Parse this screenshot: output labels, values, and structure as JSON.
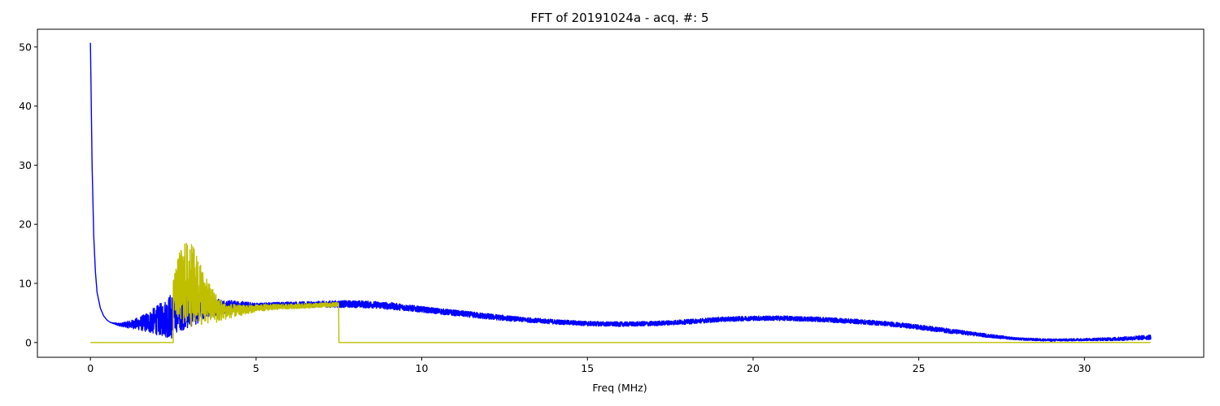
{
  "chart_data": {
    "type": "line",
    "title": "FFT of 20191024a - acq. #: 5",
    "xlabel": "Freq (MHz)",
    "ylabel": "",
    "xlim": [
      -1.6,
      33.6
    ],
    "ylim": [
      -2.5,
      53
    ],
    "xticks": [
      0,
      5,
      10,
      15,
      20,
      25,
      30
    ],
    "yticks": [
      0,
      10,
      20,
      30,
      40,
      50
    ],
    "grid": false,
    "legend": "none",
    "series": [
      {
        "color": "#0000ff",
        "style": "noisy-envelope",
        "x": [
          0,
          0.05,
          0.1,
          0.15,
          0.2,
          0.3,
          0.4,
          0.5,
          0.6,
          0.8,
          1.0,
          1.3,
          1.6,
          1.9,
          2.2,
          2.45,
          2.5,
          3.0,
          3.5,
          4.0,
          4.5,
          5.0,
          5.5,
          6.0,
          6.5,
          7.0,
          7.5,
          8.0,
          8.5,
          9.0,
          10.0,
          11.0,
          12.0,
          13.0,
          14.0,
          15.0,
          16.0,
          17.0,
          18.0,
          19.0,
          20.0,
          21.0,
          22.0,
          23.0,
          24.0,
          25.0,
          26.0,
          27.0,
          28.0,
          29.0,
          30.0,
          31.0,
          32.0
        ],
        "y": [
          50.7,
          30,
          18,
          12,
          8.5,
          5.8,
          4.5,
          3.8,
          3.4,
          3.1,
          3.0,
          3.1,
          3.3,
          3.6,
          4.0,
          4.5,
          5.0,
          5.5,
          6.0,
          6.1,
          6.2,
          6.2,
          6.3,
          6.4,
          6.4,
          6.5,
          6.5,
          6.5,
          6.4,
          6.2,
          5.6,
          5.0,
          4.4,
          3.9,
          3.5,
          3.2,
          3.1,
          3.2,
          3.5,
          3.9,
          4.1,
          4.1,
          3.9,
          3.6,
          3.2,
          2.6,
          1.9,
          1.2,
          0.6,
          0.4,
          0.5,
          0.6,
          0.9
        ],
        "noise": [
          0,
          0,
          0,
          0,
          0,
          0,
          0,
          0,
          0,
          0.2,
          0.4,
          0.8,
          1.4,
          2.2,
          3.0,
          4.0,
          3.5,
          3.0,
          2.0,
          1.2,
          0.8,
          0.5,
          0.5,
          0.5,
          0.5,
          0.5,
          0.6,
          0.6,
          0.6,
          0.6,
          0.5,
          0.5,
          0.5,
          0.4,
          0.4,
          0.4,
          0.4,
          0.4,
          0.4,
          0.4,
          0.4,
          0.4,
          0.4,
          0.4,
          0.4,
          0.4,
          0.4,
          0.3,
          0.2,
          0.2,
          0.2,
          0.3,
          0.4
        ]
      },
      {
        "color": "#bfbf00",
        "style": "noisy-envelope",
        "x": [
          0,
          2.5,
          2.5,
          2.7,
          2.9,
          3.1,
          3.3,
          3.5,
          3.8,
          4.0,
          4.5,
          5.0,
          5.5,
          6.0,
          6.5,
          7.0,
          7.49,
          7.5,
          10,
          15,
          20,
          25,
          30,
          32
        ],
        "y": [
          0,
          0,
          8.5,
          9.5,
          10,
          9.5,
          8.5,
          7.0,
          5.8,
          5.3,
          5.4,
          5.8,
          6.0,
          6.1,
          6.2,
          6.3,
          6.4,
          0,
          0,
          0,
          0,
          0,
          0,
          0
        ],
        "noise": [
          0,
          0,
          3.0,
          6.0,
          7.5,
          7.0,
          5.5,
          3.8,
          2.5,
          1.5,
          0.9,
          0.6,
          0.5,
          0.4,
          0.4,
          0.4,
          0.4,
          0,
          0,
          0,
          0,
          0,
          0,
          0
        ]
      }
    ]
  }
}
